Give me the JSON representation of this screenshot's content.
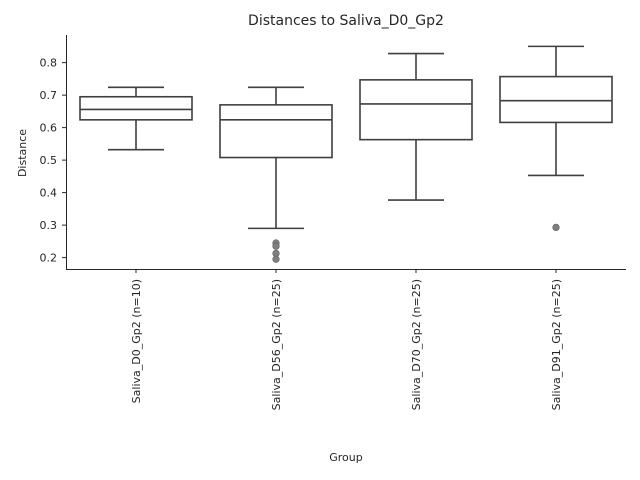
{
  "chart_data": {
    "type": "box",
    "title": "Distances to Saliva_D0_Gp2",
    "xlabel": "Group",
    "ylabel": "Distance",
    "ylim": [
      0.165,
      0.885
    ],
    "yticks": [
      0.2,
      0.3,
      0.4,
      0.5,
      0.6,
      0.7,
      0.8
    ],
    "grid": false,
    "categories": [
      "Saliva_D0_Gp2 (n=10)",
      "Saliva_D56_Gp2 (n=25)",
      "Saliva_D70_Gp2 (n=25)",
      "Saliva_D91_Gp2 (n=25)"
    ],
    "boxes": [
      {
        "whisker_low": 0.532,
        "q1": 0.624,
        "median": 0.656,
        "q3": 0.695,
        "whisker_high": 0.724,
        "outliers": [],
        "color": "#3274a1"
      },
      {
        "whisker_low": 0.29,
        "q1": 0.508,
        "median": 0.624,
        "q3": 0.67,
        "whisker_high": 0.724,
        "outliers": [
          0.245,
          0.235,
          0.213,
          0.195
        ],
        "color": "#e1812c"
      },
      {
        "whisker_low": 0.377,
        "q1": 0.563,
        "median": 0.673,
        "q3": 0.747,
        "whisker_high": 0.828,
        "outliers": [],
        "color": "#3a923a"
      },
      {
        "whisker_low": 0.453,
        "q1": 0.616,
        "median": 0.683,
        "q3": 0.757,
        "whisker_high": 0.85,
        "outliers": [
          0.293
        ],
        "color": "#c03d3e"
      }
    ]
  }
}
